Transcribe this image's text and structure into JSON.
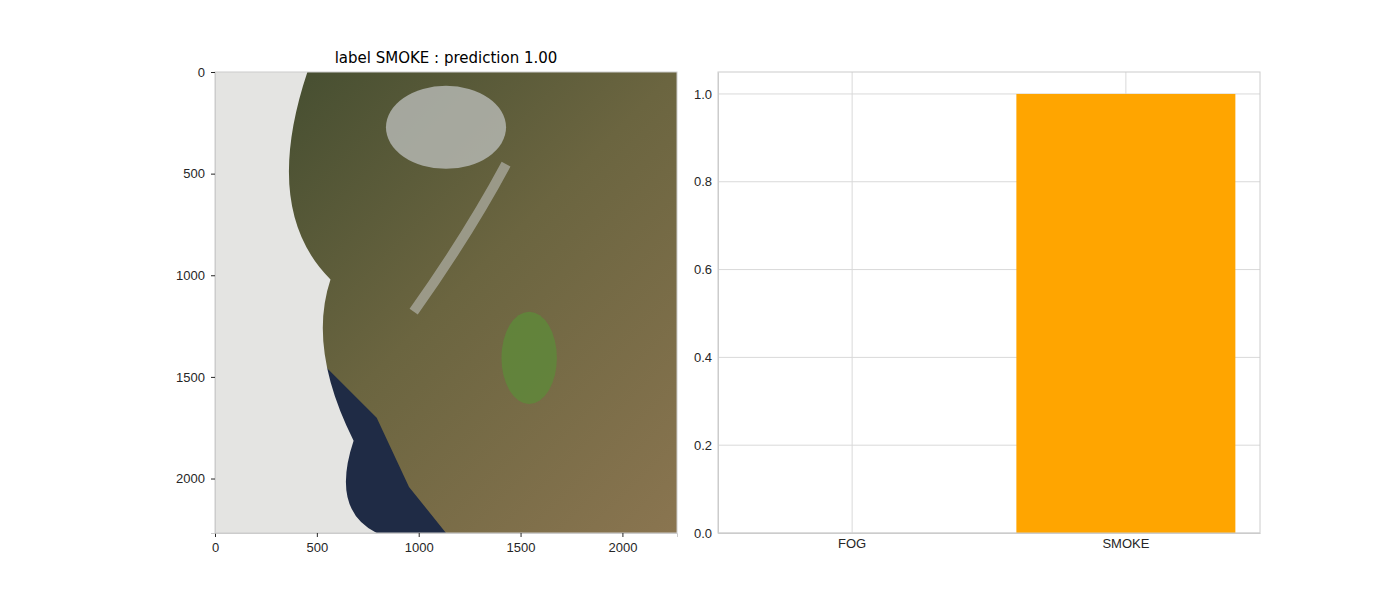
{
  "chart_data": [
    {
      "type": "image",
      "title": "label  SMOKE : prediction 1.00",
      "xlim": [
        0,
        2268
      ],
      "ylim": [
        2268,
        0
      ],
      "xticks": [
        0,
        500,
        1000,
        1500,
        2000
      ],
      "yticks": [
        0,
        500,
        1000,
        1500,
        2000
      ],
      "grid": false
    },
    {
      "type": "bar",
      "categories": [
        "FOG",
        "SMOKE"
      ],
      "values": [
        0,
        1.0
      ],
      "color": "#ffa500",
      "ylim": [
        0,
        1.05
      ],
      "yticks": [
        {
          "value": 0,
          "label": "0.0"
        },
        0.2,
        0.4,
        0.6,
        0.8,
        {
          "value": 1,
          "label": "1.0"
        }
      ],
      "grid": true
    }
  ]
}
